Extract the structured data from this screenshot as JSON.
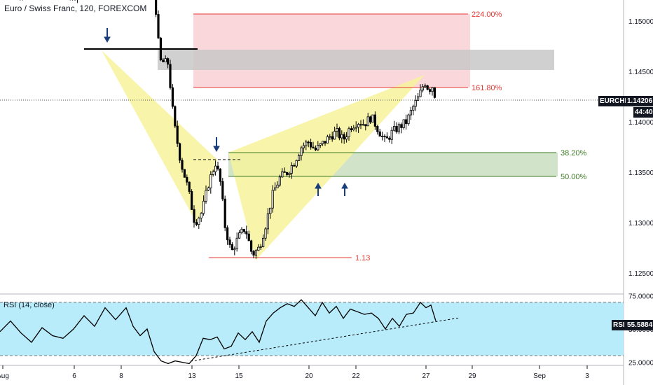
{
  "header": {
    "title": "Euro / Swiss Franc, 120, FOREXCOM"
  },
  "rsi": {
    "title": "RSI (14, close)",
    "tag": "RSI",
    "value": "55.5884",
    "upper": 70,
    "lower": 30
  },
  "price_tag": {
    "symbol": "EURCHF",
    "price": "1.14206",
    "countdown": "44:40"
  },
  "fib_labels": {
    "f224": "224.00%",
    "f1618": "161.80%",
    "f382": "38.20%",
    "f50": "50.00%",
    "level": "1.13"
  },
  "colors": {
    "bull": "#26a69a",
    "up_candle": "#ffffff",
    "down_candle": "#000000",
    "pattern_fill": "#f7f39c",
    "red_zone": "#f8c9cf",
    "gray_zone": "#cfcfcf",
    "green_zone": "#c9dfc0",
    "rsi_bg": "#b8ecfb",
    "red_line": "#e53935",
    "green_line": "#3d7a26",
    "arrow": "#1a3d7c"
  },
  "chart_data": {
    "type": "candlestick",
    "title": "Euro / Swiss Franc, 120, FOREXCOM",
    "y_ticks": [
      "1.15000",
      "1.14500",
      "1.14000",
      "1.13500",
      "1.13000",
      "1.12500"
    ],
    "ylim": [
      1.1237,
      1.1545
    ],
    "x_ticks": [
      "Aug",
      "6",
      "8",
      "13",
      "15",
      "20",
      "22",
      "27",
      "29",
      "Sep",
      "3"
    ],
    "rsi_ticks": [
      "75.0000",
      "50.0000",
      "25.0000"
    ],
    "rsi_ylim": [
      20,
      80
    ],
    "current_price": 1.14206,
    "close_path": [
      [
        5,
        1.1535
      ],
      [
        40,
        1.1528
      ],
      [
        80,
        1.153
      ],
      [
        110,
        1.1528
      ],
      [
        150,
        1.1533
      ],
      [
        200,
        1.154
      ],
      [
        220,
        1.1535
      ],
      [
        228,
        1.146
      ],
      [
        240,
        1.1458
      ],
      [
        248,
        1.14
      ],
      [
        258,
        1.136
      ],
      [
        268,
        1.1335
      ],
      [
        278,
        1.13
      ],
      [
        288,
        1.131
      ],
      [
        298,
        1.134
      ],
      [
        308,
        1.136
      ],
      [
        316,
        1.1335
      ],
      [
        320,
        1.13
      ],
      [
        330,
        1.127
      ],
      [
        340,
        1.1285
      ],
      [
        350,
        1.1295
      ],
      [
        360,
        1.1268
      ],
      [
        370,
        1.1275
      ],
      [
        380,
        1.13
      ],
      [
        390,
        1.133
      ],
      [
        400,
        1.1345
      ],
      [
        410,
        1.135
      ],
      [
        420,
        1.136
      ],
      [
        430,
        1.1375
      ],
      [
        440,
        1.138
      ],
      [
        450,
        1.1372
      ],
      [
        460,
        1.1378
      ],
      [
        470,
        1.1385
      ],
      [
        480,
        1.139
      ],
      [
        490,
        1.1382
      ],
      [
        500,
        1.1395
      ],
      [
        510,
        1.14
      ],
      [
        520,
        1.1398
      ],
      [
        530,
        1.1405
      ],
      [
        540,
        1.1392
      ],
      [
        550,
        1.138
      ],
      [
        560,
        1.139
      ],
      [
        570,
        1.1395
      ],
      [
        580,
        1.14
      ],
      [
        590,
        1.1415
      ],
      [
        598,
        1.1425
      ],
      [
        606,
        1.144
      ],
      [
        612,
        1.1432
      ],
      [
        618,
        1.1436
      ],
      [
        622,
        1.1421
      ]
    ],
    "rsi_path": [
      [
        0,
        48
      ],
      [
        15,
        56
      ],
      [
        30,
        47
      ],
      [
        45,
        40
      ],
      [
        60,
        51
      ],
      [
        75,
        45
      ],
      [
        90,
        43
      ],
      [
        105,
        50
      ],
      [
        120,
        60
      ],
      [
        135,
        52
      ],
      [
        150,
        66
      ],
      [
        165,
        57
      ],
      [
        180,
        66
      ],
      [
        190,
        52
      ],
      [
        200,
        45
      ],
      [
        210,
        50
      ],
      [
        220,
        33
      ],
      [
        230,
        26
      ],
      [
        240,
        24
      ],
      [
        250,
        26
      ],
      [
        260,
        25
      ],
      [
        270,
        24
      ],
      [
        280,
        30
      ],
      [
        290,
        43
      ],
      [
        300,
        42
      ],
      [
        310,
        44
      ],
      [
        320,
        35
      ],
      [
        330,
        37
      ],
      [
        340,
        47
      ],
      [
        350,
        42
      ],
      [
        360,
        48
      ],
      [
        370,
        40
      ],
      [
        380,
        56
      ],
      [
        390,
        62
      ],
      [
        400,
        66
      ],
      [
        410,
        69
      ],
      [
        420,
        67
      ],
      [
        430,
        72
      ],
      [
        440,
        66
      ],
      [
        450,
        60
      ],
      [
        460,
        70
      ],
      [
        470,
        62
      ],
      [
        480,
        67
      ],
      [
        490,
        58
      ],
      [
        500,
        65
      ],
      [
        510,
        63
      ],
      [
        520,
        61
      ],
      [
        530,
        62
      ],
      [
        540,
        58
      ],
      [
        550,
        50
      ],
      [
        560,
        58
      ],
      [
        570,
        52
      ],
      [
        580,
        61
      ],
      [
        590,
        62
      ],
      [
        600,
        70
      ],
      [
        608,
        66
      ],
      [
        615,
        68
      ],
      [
        622,
        56
      ]
    ],
    "annotations": {
      "fib_224": 1.1505,
      "fib_1618": 1.1433,
      "fib_382": 1.1369,
      "fib_50": 1.1345,
      "level_113": 1.1265,
      "gray_zone": [
        1.1449,
        1.147
      ]
    }
  }
}
